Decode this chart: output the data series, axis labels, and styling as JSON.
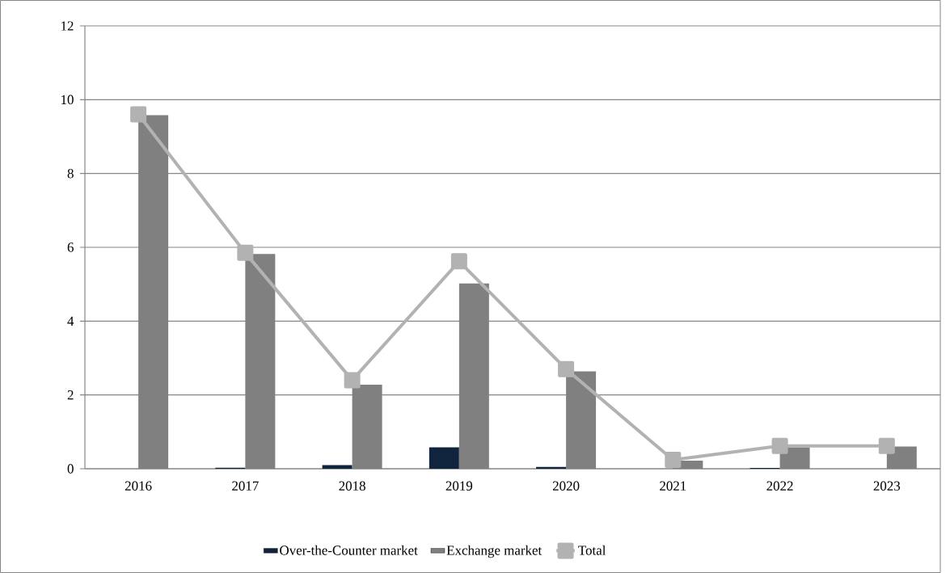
{
  "chart_data": {
    "type": "bar",
    "categories": [
      "2016",
      "2017",
      "2018",
      "2019",
      "2020",
      "2021",
      "2022",
      "2023"
    ],
    "series": [
      {
        "name": "Over-the-Counter market",
        "color": "#10243e",
        "values": [
          null,
          0.03,
          0.1,
          0.58,
          0.05,
          null,
          0.02,
          null
        ]
      },
      {
        "name": "Exchange market",
        "color": "#808080",
        "values": [
          9.58,
          5.82,
          2.28,
          5.02,
          2.64,
          0.22,
          0.58,
          0.6
        ]
      },
      {
        "name": "Total",
        "type": "line",
        "color": "#b2b2b2",
        "marker": "square",
        "line_style": "solid",
        "values": [
          9.6,
          5.85,
          2.4,
          5.62,
          2.7,
          0.24,
          0.62,
          0.62
        ]
      }
    ],
    "ylim": [
      0,
      12
    ],
    "yticks": [
      0,
      2,
      4,
      6,
      8,
      10,
      12
    ],
    "grid": "y",
    "legend": "bottom"
  }
}
